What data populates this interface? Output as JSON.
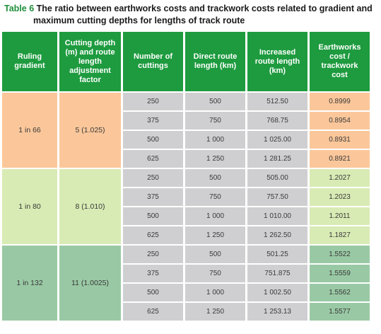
{
  "caption": {
    "label": "Table 6",
    "line1": "The ratio between earthworks costs and trackwork costs related to gradient and",
    "line2": "maximum cutting depths for lengths of track route"
  },
  "colors": {
    "header_bg": "#1e9b3f",
    "caption_label": "#1f8f3a",
    "group_1_in_66": "#fbc79a",
    "group_1_in_80": "#d8ebb4",
    "group_1_in_132": "#99c9a4",
    "value_cell": "#cfcfd1"
  },
  "headers": [
    "Ruling gradient",
    "Cutting depth (m) and route length adjustment factor",
    "Number of cuttings",
    "Direct route length (km)",
    "Increased route length (km)",
    "Earthworks cost / trackwork cost"
  ],
  "groups": [
    {
      "gradient": "1 in 66",
      "cutting": "5 (1.025)",
      "rows": [
        [
          "250",
          "500",
          "512.50",
          "0.8999"
        ],
        [
          "375",
          "750",
          "768.75",
          "0.8954"
        ],
        [
          "500",
          "1 000",
          "1 025.00",
          "0.8931"
        ],
        [
          "625",
          "1 250",
          "1 281.25",
          "0.8921"
        ]
      ]
    },
    {
      "gradient": "1 in 80",
      "cutting": "8 (1.010)",
      "rows": [
        [
          "250",
          "500",
          "505.00",
          "1.2027"
        ],
        [
          "375",
          "750",
          "757.50",
          "1.2023"
        ],
        [
          "500",
          "1 000",
          "1 010.00",
          "1.2011"
        ],
        [
          "625",
          "1 250",
          "1 262.50",
          "1.1827"
        ]
      ]
    },
    {
      "gradient": "1 in 132",
      "cutting": "11 (1.0025)",
      "rows": [
        [
          "250",
          "500",
          "501.25",
          "1.5522"
        ],
        [
          "375",
          "750",
          "751.875",
          "1.5559"
        ],
        [
          "500",
          "1 000",
          "1 002.50",
          "1.5562"
        ],
        [
          "625",
          "1 250",
          "1 253.13",
          "1.5577"
        ]
      ]
    }
  ]
}
